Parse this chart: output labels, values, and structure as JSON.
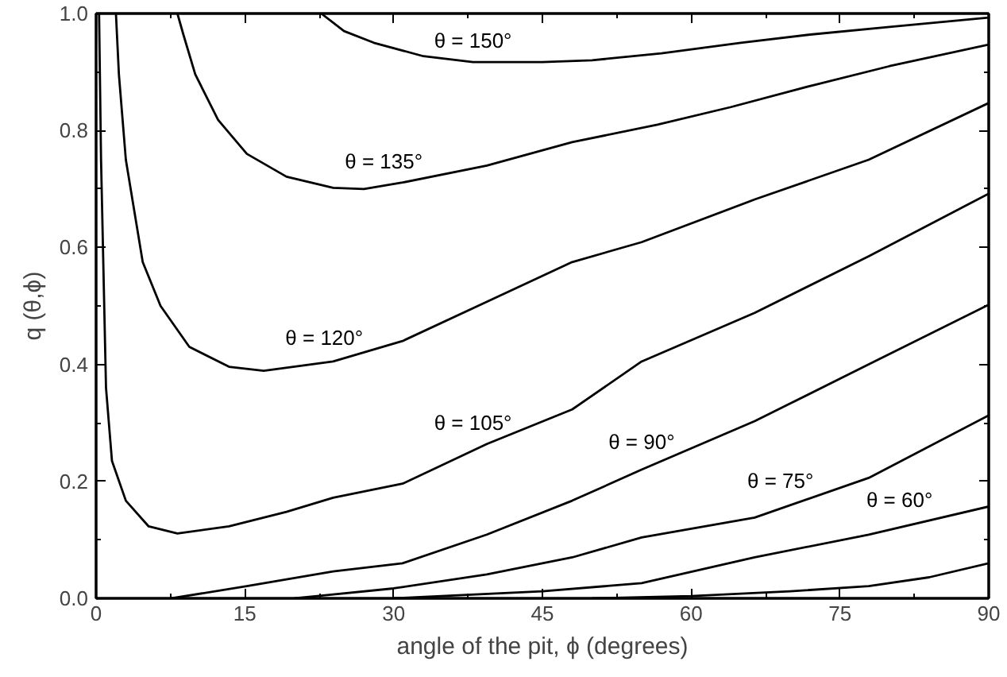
{
  "chart_data": {
    "type": "line",
    "xlabel": "angle of the pit, ϕ (degrees)",
    "ylabel": "q (θ,ϕ)",
    "xlim": [
      0,
      90
    ],
    "ylim": [
      0,
      1.0
    ],
    "xticks": [
      0,
      15,
      30,
      45,
      60,
      75,
      90
    ],
    "yticks": [
      {
        "value": 0,
        "label": "0.0"
      },
      0.2,
      0.4,
      0.6,
      0.8,
      {
        "value": 1,
        "label": "1.0"
      }
    ],
    "grid": false,
    "marker": "none",
    "line_style": "solid",
    "series": [
      {
        "name": "θ = 150°",
        "color": "#000000",
        "x": [
          22.7,
          25,
          28,
          33,
          38,
          45,
          50,
          57,
          65,
          72,
          80,
          90
        ],
        "values": [
          1.0,
          0.97,
          0.95,
          0.927,
          0.917,
          0.917,
          0.92,
          0.932,
          0.95,
          0.964,
          0.977,
          0.993
        ]
      },
      {
        "name": "θ = 135°",
        "color": "#000000",
        "x": [
          8.2,
          8.8,
          10,
          12.3,
          15.2,
          19.2,
          23.9,
          27,
          30.9,
          39.4,
          48,
          56.6,
          64,
          72.2,
          80,
          90
        ],
        "values": [
          1.0,
          0.964,
          0.896,
          0.818,
          0.76,
          0.721,
          0.702,
          0.7,
          0.711,
          0.74,
          0.78,
          0.81,
          0.84,
          0.877,
          0.91,
          0.947
        ]
      },
      {
        "name": "θ = 120°",
        "color": "#000000",
        "x": [
          2.0,
          2.3,
          3.0,
          4.7,
          6.5,
          9.4,
          13.4,
          16.9,
          23.9,
          30.9,
          39.4,
          48,
          55,
          66.4,
          77.9,
          90
        ],
        "values": [
          1.0,
          0.896,
          0.75,
          0.575,
          0.5,
          0.43,
          0.396,
          0.389,
          0.405,
          0.44,
          0.507,
          0.575,
          0.609,
          0.682,
          0.75,
          0.847
        ]
      },
      {
        "name": "θ = 105°",
        "color": "#000000",
        "x": [
          0.3,
          0.5,
          1.0,
          1.6,
          3.0,
          5.3,
          8.2,
          13.4,
          19.2,
          23.9,
          30.9,
          39.4,
          48,
          55,
          66.4,
          77.9,
          90
        ],
        "values": [
          1.0,
          0.75,
          0.36,
          0.235,
          0.167,
          0.123,
          0.111,
          0.123,
          0.148,
          0.172,
          0.196,
          0.264,
          0.323,
          0.405,
          0.488,
          0.585,
          0.692
        ]
      },
      {
        "name": "θ = 90°",
        "color": "#000000",
        "x": [
          7.6,
          15.2,
          23.9,
          30.9,
          39.4,
          48,
          55,
          66.4,
          77.9,
          90
        ],
        "values": [
          0.0,
          0.021,
          0.046,
          0.06,
          0.109,
          0.167,
          0.22,
          0.303,
          0.4,
          0.502
        ]
      },
      {
        "name": "θ = 75°",
        "color": "#000000",
        "x": [
          20,
          22.3,
          30,
          39.4,
          48,
          55,
          66.4,
          77.9,
          90
        ],
        "values": [
          0.0,
          0.004,
          0.017,
          0.041,
          0.07,
          0.104,
          0.138,
          0.206,
          0.313
        ]
      },
      {
        "name": "θ = 60°",
        "color": "#000000",
        "x": [
          30,
          45,
          55,
          66.4,
          77.9,
          90
        ],
        "values": [
          0.0,
          0.012,
          0.026,
          0.07,
          0.109,
          0.157
        ]
      },
      {
        "color": "#000000",
        "x": [
          50,
          60,
          70,
          77.9,
          84,
          90
        ],
        "values": [
          0.0,
          0.004,
          0.012,
          0.021,
          0.036,
          0.06
        ]
      }
    ]
  }
}
